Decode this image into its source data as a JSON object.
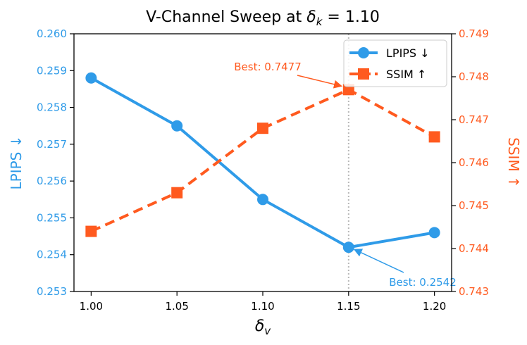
{
  "chart_data": {
    "type": "line",
    "title_prefix": "V-Channel Sweep at ",
    "title_math_symbol": "δ",
    "title_math_subscript": "k",
    "title_math_value": " = 1.10",
    "xlabel_symbol": "δ",
    "xlabel_subscript": "v",
    "x": [
      1.0,
      1.05,
      1.1,
      1.15,
      1.2
    ],
    "x_tick_labels": [
      "1.00",
      "1.05",
      "1.10",
      "1.15",
      "1.20"
    ],
    "xlim": [
      0.99,
      1.21
    ],
    "series": [
      {
        "name": "LPIPS ↓",
        "axis": "left",
        "color": "#2F9BE8",
        "line_style": "solid",
        "marker": "circle",
        "values": [
          0.2588,
          0.2575,
          0.2555,
          0.2542,
          0.2546
        ]
      },
      {
        "name": "SSIM ↑",
        "axis": "right",
        "color": "#FF5A1F",
        "line_style": "dashed",
        "marker": "square",
        "values": [
          0.7444,
          0.7453,
          0.7468,
          0.7477,
          0.7466
        ]
      }
    ],
    "y_left": {
      "label": "LPIPS ↓",
      "ylim": [
        0.253,
        0.26
      ],
      "ticks": [
        0.253,
        0.254,
        0.255,
        0.256,
        0.257,
        0.258,
        0.259,
        0.26
      ],
      "tick_labels": [
        "0.253",
        "0.254",
        "0.255",
        "0.256",
        "0.257",
        "0.258",
        "0.259",
        "0.260"
      ]
    },
    "y_right": {
      "label": "SSIM ↑",
      "ylim": [
        0.743,
        0.749
      ],
      "ticks": [
        0.743,
        0.744,
        0.745,
        0.746,
        0.747,
        0.748,
        0.749
      ],
      "tick_labels": [
        "0.743",
        "0.744",
        "0.745",
        "0.746",
        "0.747",
        "0.748",
        "0.749"
      ]
    },
    "vline_x": 1.15,
    "annotations": [
      {
        "text": "Best: 0.7477",
        "series": 1,
        "point_index": 3,
        "color": "#FF5A1F"
      },
      {
        "text": "Best: 0.2542",
        "series": 0,
        "point_index": 3,
        "color": "#2F9BE8"
      }
    ],
    "legend_position": "top-right"
  }
}
